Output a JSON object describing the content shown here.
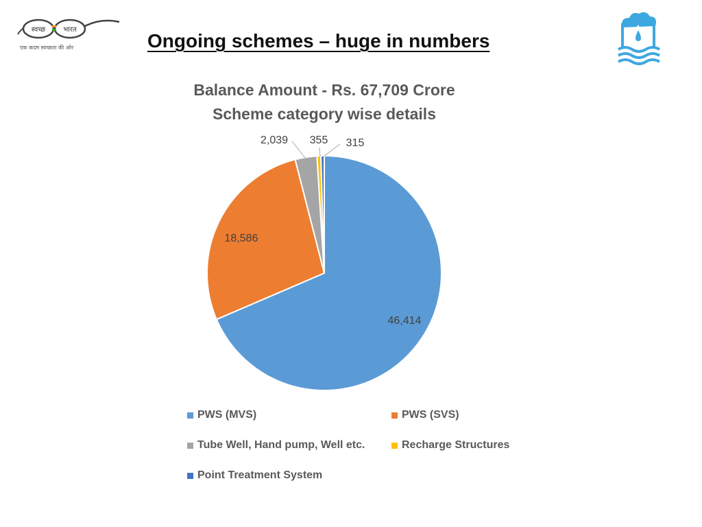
{
  "header": {
    "title": "Ongoing schemes – huge in numbers",
    "logo_left_text": [
      "स्वच्छ",
      "भारत",
      "एक कदम स्वच्छता की ओर"
    ]
  },
  "colors": {
    "mvs": "#5B9BD5",
    "svs": "#ED7D31",
    "tube_well": "#A5A5A5",
    "recharge": "#FFC000",
    "point_treatment": "#4472C4",
    "logo_blue": "#3DA7E0"
  },
  "chart_data": {
    "type": "pie",
    "title": [
      "Balance Amount - Rs. 67,709 Crore",
      "Scheme category wise details"
    ],
    "categories": [
      "PWS (MVS)",
      "PWS (SVS)",
      "Tube Well, Hand pump, Well etc.",
      "Recharge Structures",
      "Point Treatment System"
    ],
    "values": [
      46414,
      18586,
      2039,
      355,
      315
    ],
    "data_labels": [
      "46,414",
      "18,586",
      "2,039",
      "355",
      "315"
    ],
    "legend_position": "bottom"
  }
}
